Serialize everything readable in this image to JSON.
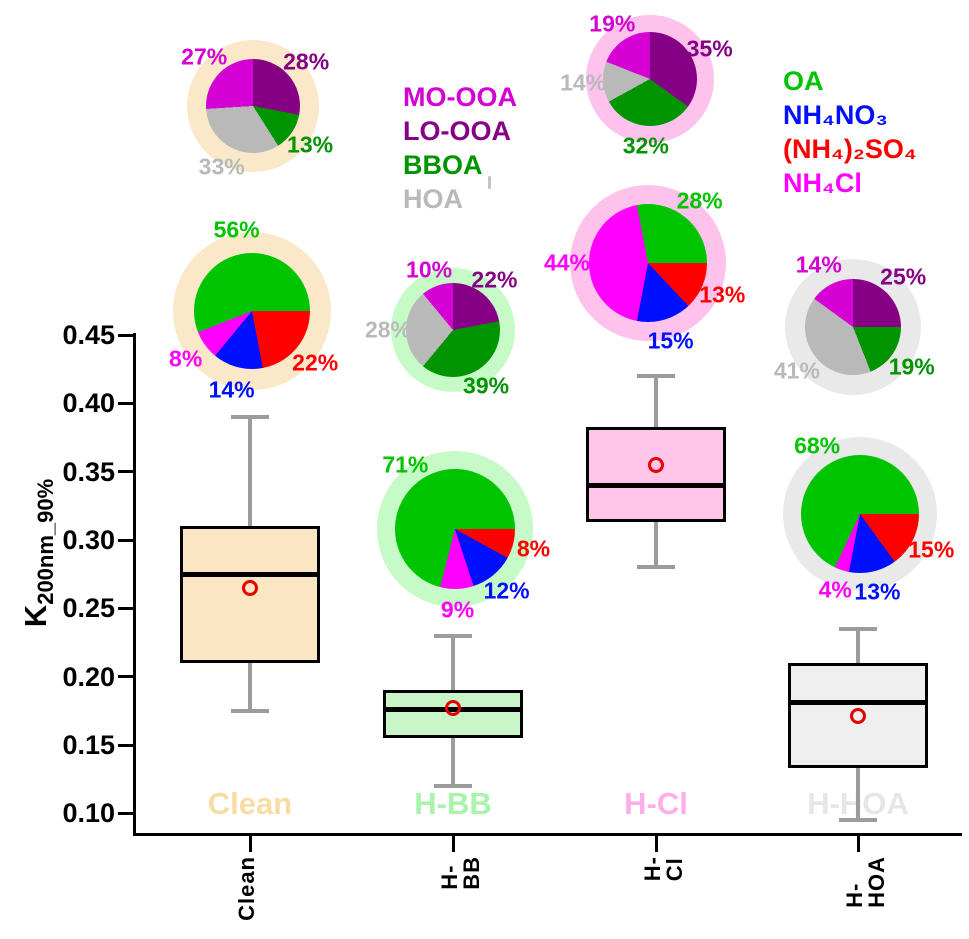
{
  "palette": {
    "MO-OOA": "#d400d4",
    "LO-OOA": "#850085",
    "BBOA": "#009400",
    "HOA": "#b9b9b9",
    "OA": "#00c400",
    "NH4NO3": "#0010ff",
    "NH42SO4": "#ff0000",
    "NH4Cl": "#ff00ff",
    "box_border": "#000000",
    "whisker": "#9c9c9c",
    "mean_marker": "#e60000",
    "axis": "#000000"
  },
  "category_colors": {
    "clean": {
      "fill": "#fae6c2",
      "halo": "#fae8c8",
      "watermark": "#f8dca4"
    },
    "hbb": {
      "fill": "#c8f6c8",
      "halo": "#c6fac6",
      "watermark": "#aaf3aa"
    },
    "hcl": {
      "fill": "#ffc6e9",
      "halo": "#ffc2ec",
      "watermark": "#ffaee8"
    },
    "hhoa": {
      "fill": "#efefef",
      "halo": "#e9e9e9",
      "watermark": "#e6e6e6"
    }
  },
  "axis": {
    "y_title_base": "K",
    "y_title_sub": "200nm_90%"
  },
  "legends": {
    "oa_factors": {
      "items": [
        {
          "label": "MO-OOA",
          "color_key": "MO-OOA"
        },
        {
          "label": "LO-OOA",
          "color_key": "LO-OOA"
        },
        {
          "label": "BBOA",
          "color_key": "BBOA"
        },
        {
          "label": "HOA",
          "color_key": "HOA"
        }
      ]
    },
    "species": {
      "items": [
        {
          "label": "OA",
          "color_key": "OA"
        },
        {
          "label": "NH₄NO₃",
          "color_key": "NH4NO3"
        },
        {
          "label": "(NH₄)₂SO₄",
          "color_key": "NH42SO4"
        },
        {
          "label": "NH₄Cl",
          "color_key": "NH4Cl"
        }
      ]
    }
  },
  "chart_data": {
    "type": "box",
    "title": "",
    "ylabel": "K200nm_90%",
    "ylim": [
      0.1,
      0.45
    ],
    "grid": false,
    "y_ticks": [
      {
        "value": 0.45,
        "label": "0.45"
      },
      {
        "value": 0.4,
        "label": "0.40"
      },
      {
        "value": 0.35,
        "label": "0.35"
      },
      {
        "value": 0.3,
        "label": "0.30"
      },
      {
        "value": 0.25,
        "label": "0.25"
      },
      {
        "value": 0.2,
        "label": "0.20"
      },
      {
        "value": 0.15,
        "label": "0.15"
      },
      {
        "value": 0.1,
        "label": "0.10"
      }
    ],
    "categories": [
      {
        "key": "clean",
        "label": "Clean"
      },
      {
        "key": "hbb",
        "label": "H-BB"
      },
      {
        "key": "hcl",
        "label": "H-Cl"
      },
      {
        "key": "hhoa",
        "label": "H-HOA"
      }
    ],
    "box_series": [
      {
        "category": "Clean",
        "key": "clean",
        "whisker_low": 0.175,
        "q1": 0.21,
        "median": 0.275,
        "mean": 0.265,
        "q3": 0.31,
        "whisker_high": 0.39
      },
      {
        "category": "H-BB",
        "key": "hbb",
        "whisker_low": 0.12,
        "q1": 0.155,
        "median": 0.176,
        "mean": 0.177,
        "q3": 0.19,
        "whisker_high": 0.23
      },
      {
        "category": "H-Cl",
        "key": "hcl",
        "whisker_low": 0.28,
        "q1": 0.313,
        "median": 0.34,
        "mean": 0.355,
        "q3": 0.383,
        "whisker_high": 0.42
      },
      {
        "category": "H-HOA",
        "key": "hhoa",
        "whisker_low": 0.095,
        "q1": 0.133,
        "median": 0.181,
        "mean": 0.171,
        "q3": 0.21,
        "whisker_high": 0.235
      }
    ],
    "pies": [
      {
        "id": "clean-oa",
        "category": "Clean",
        "kind": "oa-factors",
        "halo_key": "clean",
        "start_deg": 0,
        "slices": [
          {
            "comp": "LO-OOA",
            "pct": 28
          },
          {
            "comp": "BBOA",
            "pct": 13
          },
          {
            "comp": "HOA",
            "pct": 33
          },
          {
            "comp": "MO-OOA",
            "pct": 27
          }
        ]
      },
      {
        "id": "hcl-oa",
        "category": "H-Cl",
        "kind": "oa-factors",
        "halo_key": "hcl",
        "start_deg": 0,
        "slices": [
          {
            "comp": "LO-OOA",
            "pct": 35
          },
          {
            "comp": "BBOA",
            "pct": 32
          },
          {
            "comp": "HOA",
            "pct": 14
          },
          {
            "comp": "MO-OOA",
            "pct": 19
          }
        ]
      },
      {
        "id": "hbb-oa",
        "category": "H-BB",
        "kind": "oa-factors",
        "halo_key": "hbb",
        "start_deg": 0,
        "slices": [
          {
            "comp": "LO-OOA",
            "pct": 22
          },
          {
            "comp": "BBOA",
            "pct": 39
          },
          {
            "comp": "HOA",
            "pct": 28
          },
          {
            "comp": "MO-OOA",
            "pct": 10
          }
        ]
      },
      {
        "id": "hhoa-oa",
        "category": "H-HOA",
        "kind": "oa-factors",
        "halo_key": "hhoa",
        "start_deg": 0,
        "slices": [
          {
            "comp": "LO-OOA",
            "pct": 25
          },
          {
            "comp": "BBOA",
            "pct": 19
          },
          {
            "comp": "HOA",
            "pct": 41
          },
          {
            "comp": "MO-OOA",
            "pct": 14
          }
        ]
      },
      {
        "id": "clean-sp",
        "category": "Clean",
        "kind": "species",
        "halo_key": "clean",
        "start_deg": 90,
        "slices": [
          {
            "comp": "NH42SO4",
            "pct": 22
          },
          {
            "comp": "NH4NO3",
            "pct": 14
          },
          {
            "comp": "NH4Cl",
            "pct": 8
          },
          {
            "comp": "OA",
            "pct": 56
          }
        ]
      },
      {
        "id": "hbb-sp",
        "category": "H-BB",
        "kind": "species",
        "halo_key": "hbb",
        "start_deg": 90,
        "slices": [
          {
            "comp": "NH42SO4",
            "pct": 8
          },
          {
            "comp": "NH4NO3",
            "pct": 12
          },
          {
            "comp": "NH4Cl",
            "pct": 9
          },
          {
            "comp": "OA",
            "pct": 71
          }
        ]
      },
      {
        "id": "hcl-sp",
        "category": "H-Cl",
        "kind": "species",
        "halo_key": "hcl",
        "start_deg": 90,
        "slices": [
          {
            "comp": "NH42SO4",
            "pct": 13
          },
          {
            "comp": "NH4NO3",
            "pct": 15
          },
          {
            "comp": "NH4Cl",
            "pct": 44
          },
          {
            "comp": "OA",
            "pct": 28
          }
        ]
      },
      {
        "id": "hhoa-sp",
        "category": "H-HOA",
        "kind": "species",
        "halo_key": "hhoa",
        "start_deg": 90,
        "slices": [
          {
            "comp": "NH42SO4",
            "pct": 15
          },
          {
            "comp": "NH4NO3",
            "pct": 13
          },
          {
            "comp": "NH4Cl",
            "pct": 4
          },
          {
            "comp": "OA",
            "pct": 68
          }
        ]
      }
    ]
  }
}
